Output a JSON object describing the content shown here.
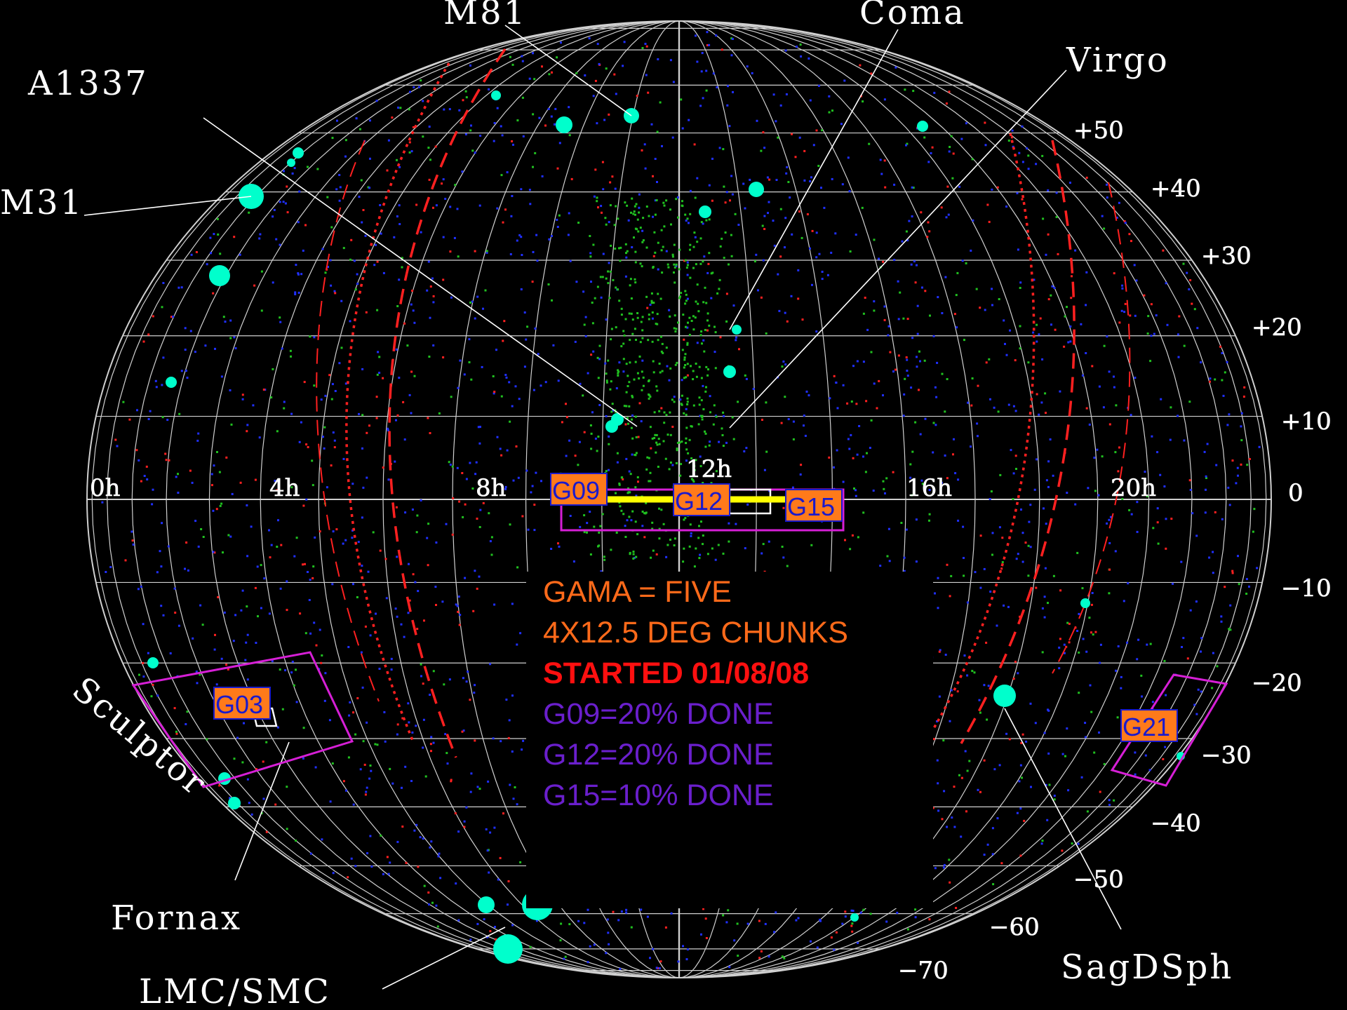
{
  "colors": {
    "background": "#000000",
    "grid": "#d0d0d0",
    "label_text": "#ffffff",
    "field_outline": "#d61fd6",
    "field_tag_fill": "#ff7a1a",
    "field_tag_border": "#1a1acc",
    "equatorial_strip": "#ffff00",
    "cluster_marker": "#00ffcc",
    "galactic_plane_lines": "#ff2020",
    "status_orange": "#ff6a1a",
    "status_red": "#ff1010",
    "status_purple": "#6a1fcc"
  },
  "ra_labels": [
    "0h",
    "4h",
    "8h",
    "12h",
    "16h",
    "20h"
  ],
  "dec_labels": [
    "+50",
    "+40",
    "+30",
    "+20",
    "+10",
    "0",
    "−10",
    "−20",
    "−30",
    "−40",
    "−50",
    "−60",
    "−70"
  ],
  "object_labels": [
    "M81",
    "Coma",
    "Virgo",
    "A1337",
    "M31",
    "Sculptor",
    "Fornax",
    "LMC/SMC",
    "SagDSph"
  ],
  "fields": [
    "G09",
    "G12",
    "G15",
    "G03",
    "G21"
  ],
  "status_lines": [
    "GAMA = FIVE",
    "4X12.5 DEG CHUNKS",
    "STARTED 01/08/08",
    "G09=20% DONE",
    "G12=20% DONE",
    "G15=10% DONE"
  ]
}
